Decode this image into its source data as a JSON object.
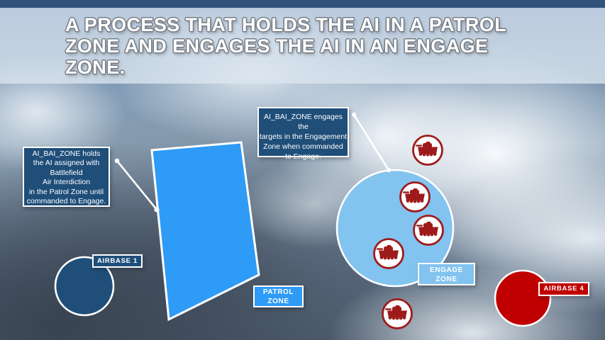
{
  "slide": {
    "title": {
      "lines": [
        "A PROCESS THAT HOLDS THE AI IN A PATROL",
        "ZONE AND ENGAGES THE AI IN AN ENGAGE",
        "ZONE."
      ]
    },
    "callouts": {
      "hold": {
        "lines": [
          "AI_BAI_ZONE holds",
          "the AI assigned with",
          "Battlefield",
          "Air Interdiction",
          "in the Patrol Zone until",
          "commanded to Engage."
        ]
      },
      "engage": {
        "lines": [
          "AI_BAI_ZONE engages the",
          "targets in the Engagement",
          "Zone when commanded",
          "to Engage."
        ]
      }
    },
    "zones": {
      "patrol": {
        "label_lines": [
          "PATROL",
          "ZONE"
        ]
      },
      "engage": {
        "label_lines": [
          "ENGAGE",
          "ZONE"
        ]
      }
    },
    "airbases": {
      "base1": {
        "label": "AIRBASE 1"
      },
      "base4": {
        "label": "AIRBASE 4"
      }
    },
    "units": {
      "icon": "tank-icon",
      "enemy_armor_count": 5
    },
    "colors": {
      "patrol_blue": "#2e9bf7",
      "engage_blue": "#82c3f0",
      "navy": "#1f4e79",
      "airbase_red": "#c00000",
      "armor_red": "#9e1b1b",
      "connector_white": "#ffffff"
    }
  }
}
